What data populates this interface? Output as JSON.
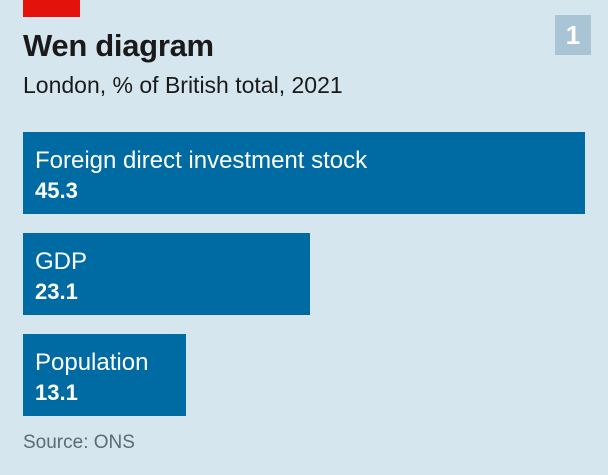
{
  "header": {
    "chart_number": "1",
    "accent_color": "#e3120b",
    "badge_color": "#a9c4d4"
  },
  "footer": {
    "source": "Source: ONS"
  },
  "chart_data": {
    "type": "bar",
    "orientation": "horizontal",
    "title": "Wen diagram",
    "subtitle": "London, % of British total, 2021",
    "categories": [
      "Foreign direct investment stock",
      "GDP",
      "Population"
    ],
    "values": [
      45.3,
      23.1,
      13.1
    ],
    "value_labels": [
      "45.3",
      "23.1",
      "13.1"
    ],
    "xlim": [
      0,
      45.3
    ],
    "bar_color": "#006ba2",
    "background_color": "#d6e6ef",
    "grid": false,
    "legend": "none"
  }
}
